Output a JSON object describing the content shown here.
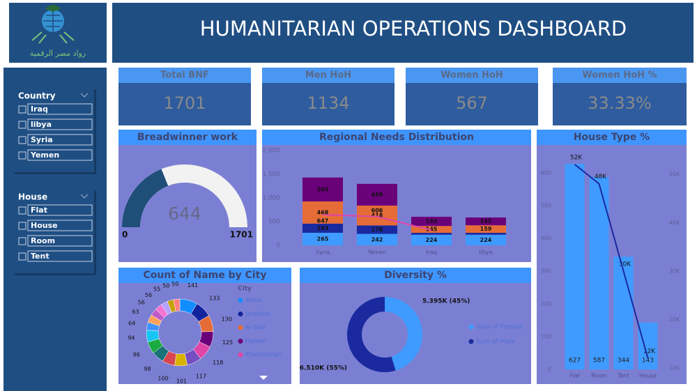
{
  "header": {
    "title": "HUMANITARIAN OPERATIONS DASHBOARD",
    "logo_text": "رواد مصر الرقمية"
  },
  "slicers": [
    {
      "title": "Country",
      "items": [
        "Iraq",
        "libya",
        "Syria",
        "Yemen"
      ]
    },
    {
      "title": "House",
      "items": [
        "Flat",
        "House",
        "Room",
        "Tent"
      ]
    }
  ],
  "kpis": [
    {
      "label": "Total BNF",
      "value": "1701"
    },
    {
      "label": "Men HoH",
      "value": "1134"
    },
    {
      "label": "Women HoH",
      "value": "567"
    },
    {
      "label": "Women HoH %",
      "value": "33.33%"
    }
  ],
  "chart_data": [
    {
      "type": "gauge",
      "title": "Breadwinner work",
      "value": 644,
      "min": 0,
      "max": 1701,
      "color": "#1f4e79",
      "track_color": "#f2f2f2"
    },
    {
      "type": "stacked_bar",
      "title": "Regional Needs Distribution",
      "categories": [
        "Syria",
        "Yemen",
        "Iraq",
        "libya"
      ],
      "series": [
        {
          "color": "#3f9bff",
          "values": [
            265,
            242,
            224,
            224
          ]
        },
        {
          "color": "#1a2a9e",
          "values": [
            193,
            178,
            40,
            40
          ],
          "value_labels": [
            "193",
            "178",
            null,
            null
          ]
        },
        {
          "color": "#e66c37",
          "values": [
            468,
            418,
            145,
            159
          ]
        },
        {
          "color": "#6b007b",
          "values": [
            505,
            459,
            193,
            165
          ]
        }
      ],
      "line": {
        "color": "#e044a7",
        "values": [
          647,
          606,
          320,
          null
        ],
        "value_labels": [
          "647",
          "606",
          null,
          null
        ]
      },
      "ylim": [
        0,
        2000
      ],
      "yticks": [
        0,
        500,
        {
          "value": 1000,
          "label": "1,000"
        },
        {
          "value": 1500,
          "label": "1,500"
        },
        {
          "value": 2000,
          "label": "2,000"
        }
      ]
    },
    {
      "type": "combo",
      "title": "House Type %",
      "categories": [
        "Flat",
        "Room",
        "Tent",
        "House"
      ],
      "series": [
        {
          "color": "#3f9bff",
          "values": [
            627,
            587,
            344,
            143
          ]
        },
        {
          "color": "#1a2a9e",
          "axis": "y2",
          "values": [
            52000,
            48000,
            30000,
            12000
          ],
          "value_labels": [
            "52K",
            "48K",
            "30K",
            "12K"
          ]
        }
      ],
      "ylim": [
        0,
        670
      ],
      "yticks": [
        0,
        100,
        200,
        300,
        400,
        500,
        600
      ],
      "y2lim": [
        9700,
        55000
      ],
      "y2ticks": [
        {
          "value": 10000,
          "label": "10K"
        },
        {
          "value": 20000,
          "label": "20K"
        },
        {
          "value": 30000,
          "label": "30K"
        },
        {
          "value": 40000,
          "label": "40K"
        },
        {
          "value": 50000,
          "label": "50K"
        }
      ]
    },
    {
      "type": "donut",
      "title": "Count of Name by City",
      "legend_title": "City",
      "categories": [
        "Atma",
        "Jarablus",
        "Al Bab",
        "Harem",
        "Kharituman",
        null,
        null,
        null,
        null,
        null,
        null,
        null,
        null,
        null,
        null,
        null,
        null,
        null
      ],
      "values": [
        141,
        133,
        130,
        125,
        118,
        117,
        101,
        100,
        98,
        96,
        94,
        64,
        63,
        56,
        56,
        55,
        50,
        50
      ],
      "colors": [
        "#118dff",
        "#12239e",
        "#e66c37",
        "#6b007b",
        "#e044a7",
        "#744ec2",
        "#d9b300",
        "#d64550",
        "#197278",
        "#1aab40",
        "#15c6f4",
        "#4092ff",
        "#ffa058",
        "#be5dc9",
        "#f472d0",
        "#b5a1ff",
        "#c4a200",
        "#ff8080"
      ]
    },
    {
      "type": "donut",
      "title": "Diversity %",
      "categories": [
        "Sum of Female",
        "Sum of Male"
      ],
      "values": [
        5395,
        6510
      ],
      "value_labels": [
        "5.395K (45%)",
        "6.510K (55%)"
      ],
      "colors": [
        "#3f9bff",
        "#1a2a9e"
      ]
    }
  ]
}
